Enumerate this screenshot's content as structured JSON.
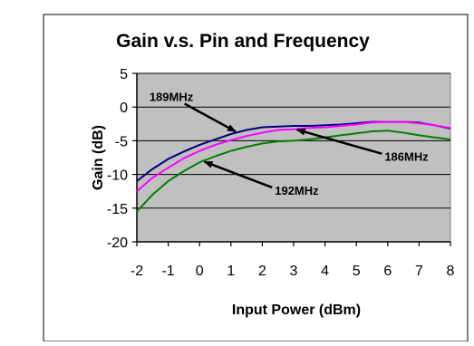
{
  "chart_data": {
    "type": "line",
    "title": "Gain v.s. Pin and Frequency",
    "xlabel": "Input Power (dBm)",
    "ylabel": "Gain (dB)",
    "xlim": [
      -2,
      8
    ],
    "ylim": [
      -20,
      5
    ],
    "xticks": [
      "-2",
      "-1",
      "0",
      "1",
      "2",
      "3",
      "4",
      "5",
      "6",
      "7",
      "8"
    ],
    "yticks": [
      "5",
      "0",
      "-5",
      "-10",
      "-15",
      "-20"
    ],
    "grid": "horizontal",
    "plot_background": "#c0c0c0",
    "series": [
      {
        "name": "189MHz",
        "color": "#000080",
        "x": [
          -2,
          -1.5,
          -1,
          -0.5,
          0,
          0.5,
          1,
          1.5,
          2,
          2.5,
          3,
          3.5,
          4,
          4.5,
          5,
          5.5,
          6,
          6.5,
          7,
          7.5,
          8
        ],
        "y": [
          -11,
          -9.2,
          -7.7,
          -6.6,
          -5.6,
          -4.8,
          -4.0,
          -3.4,
          -3.0,
          -2.9,
          -2.8,
          -2.8,
          -2.7,
          -2.6,
          -2.4,
          -2.2,
          -2.2,
          -2.2,
          -2.3,
          -2.7,
          -3.2
        ]
      },
      {
        "name": "186MHz",
        "color": "#ff00ff",
        "x": [
          -2,
          -1.5,
          -1,
          -0.5,
          0,
          0.5,
          1,
          1.5,
          2,
          2.5,
          3,
          3.5,
          4,
          4.5,
          5,
          5.5,
          6,
          6.5,
          7,
          7.5,
          8
        ],
        "y": [
          -12.5,
          -10.5,
          -9.0,
          -7.6,
          -6.5,
          -5.6,
          -4.9,
          -4.3,
          -3.8,
          -3.4,
          -3.3,
          -3.1,
          -3.0,
          -2.8,
          -2.6,
          -2.3,
          -2.2,
          -2.2,
          -2.4,
          -2.7,
          -3.1
        ]
      },
      {
        "name": "192MHz",
        "color": "#008000",
        "x": [
          -2,
          -1.5,
          -1,
          -0.5,
          0,
          0.5,
          1,
          1.5,
          2,
          2.5,
          3,
          3.5,
          4,
          4.5,
          5,
          5.5,
          6,
          6.5,
          7,
          7.5,
          8
        ],
        "y": [
          -15.5,
          -13.0,
          -11.0,
          -9.5,
          -8.2,
          -7.3,
          -6.5,
          -5.9,
          -5.4,
          -5.1,
          -5.0,
          -4.8,
          -4.5,
          -4.2,
          -3.9,
          -3.6,
          -3.5,
          -3.8,
          -4.2,
          -4.5,
          -4.8
        ]
      }
    ],
    "annotations": [
      {
        "text": "189MHz",
        "series": 0,
        "point_x": 1.2,
        "label_x": -1.6,
        "label_y": 0.9
      },
      {
        "text": "186MHz",
        "series": 1,
        "point_x": 3.05,
        "label_x": 5.9,
        "label_y": -8.0
      },
      {
        "text": "192MHz",
        "series": 2,
        "point_x": 0.1,
        "label_x": 2.4,
        "label_y": -13.0
      }
    ]
  }
}
